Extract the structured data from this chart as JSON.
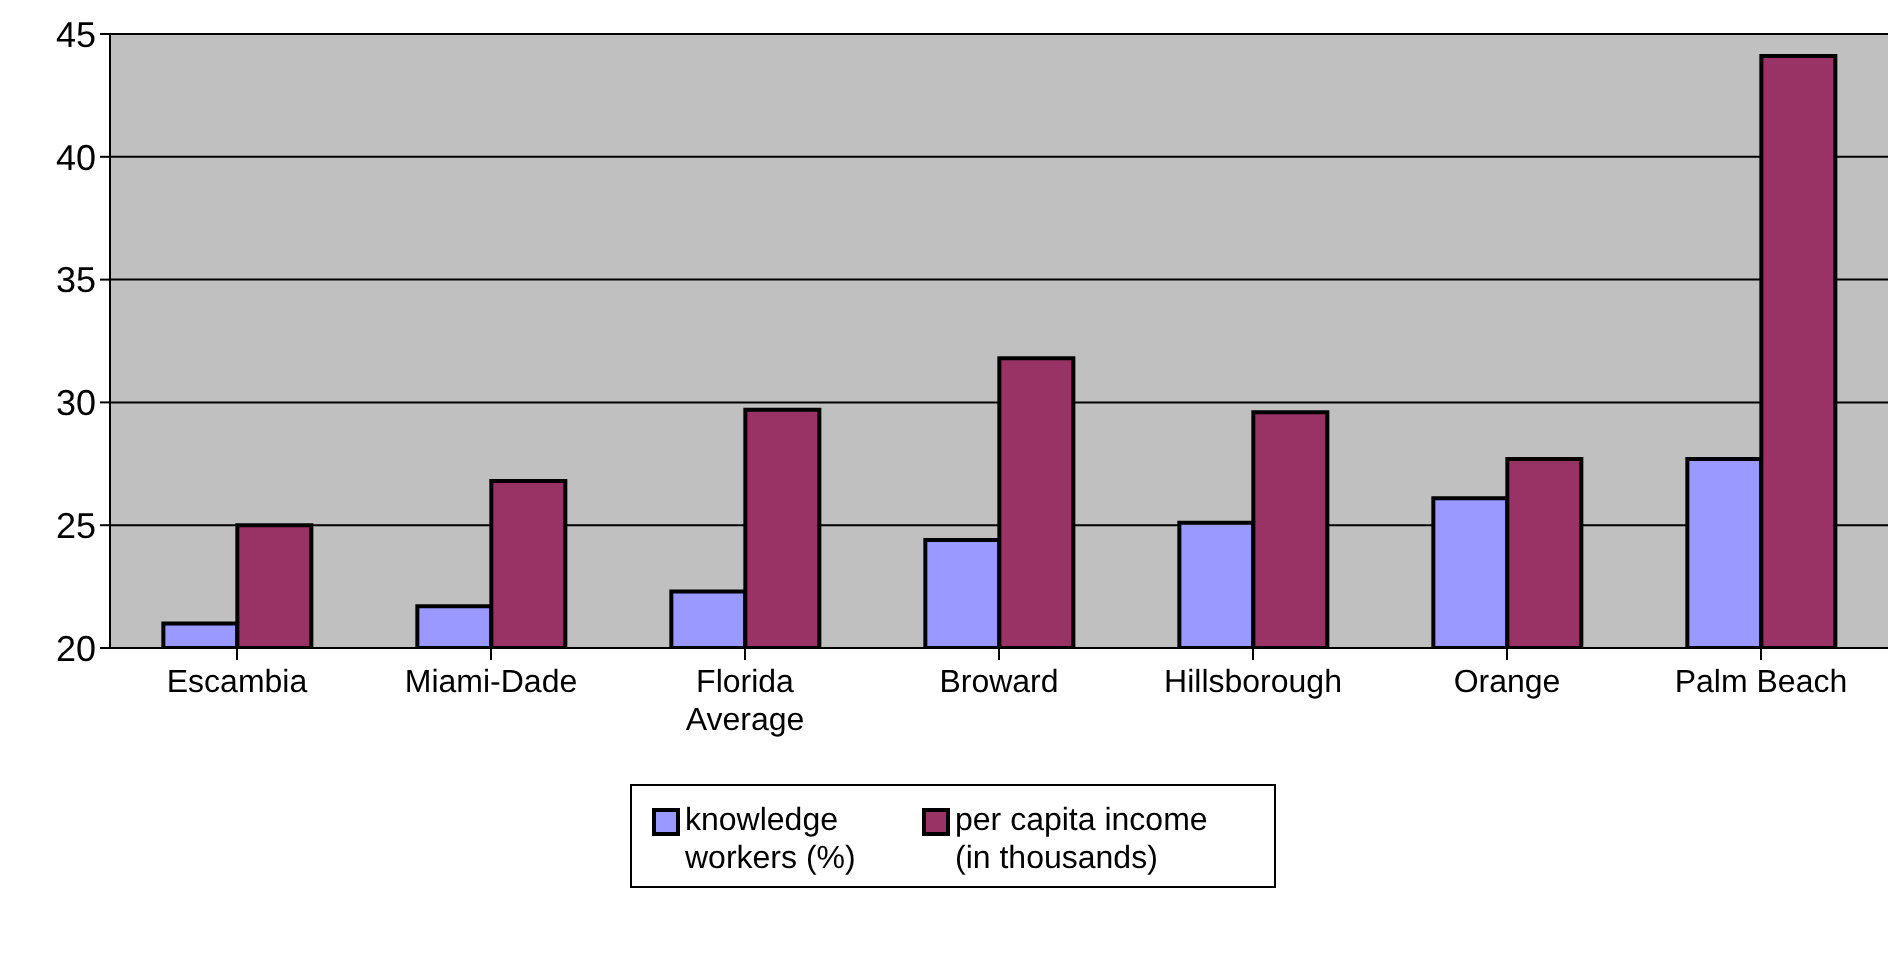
{
  "chart_data": {
    "type": "bar",
    "categories": [
      "Escambia",
      "Miami-Dade",
      "Florida Average",
      "Broward",
      "Hillsborough",
      "Orange",
      "Palm Beach"
    ],
    "series": [
      {
        "name": "knowledge workers (%)",
        "color": "#9999ff",
        "values": [
          21.0,
          21.7,
          22.3,
          24.4,
          25.1,
          26.1,
          27.7
        ]
      },
      {
        "name": "per capita income (in thousands)",
        "color": "#993366",
        "values": [
          25.0,
          26.8,
          29.7,
          31.8,
          29.6,
          27.7,
          44.1
        ]
      }
    ],
    "ylim": [
      20,
      45
    ],
    "yticks": [
      20,
      25,
      30,
      35,
      40,
      45
    ],
    "grid": "y",
    "legend": "bottom"
  }
}
